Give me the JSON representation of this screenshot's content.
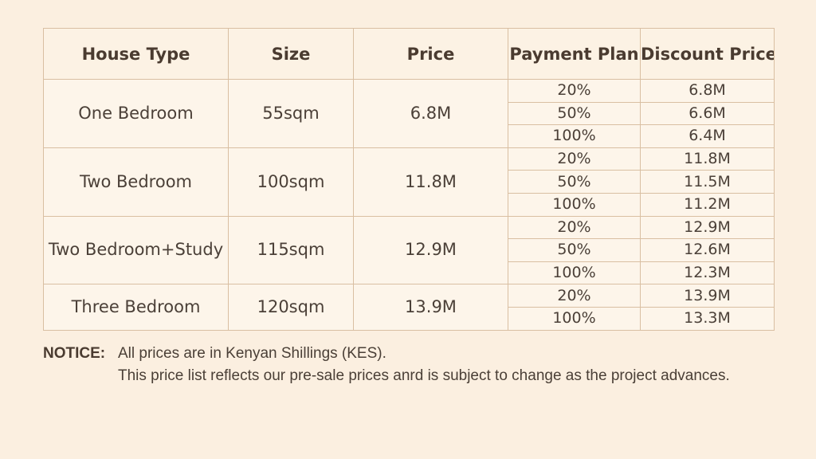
{
  "table": {
    "headers": [
      "House Type",
      "Size",
      "Price",
      "Payment Plan",
      "Discount Price"
    ],
    "groups": [
      {
        "house_type": "One Bedroom",
        "size": "55sqm",
        "price": "6.8M",
        "plans": [
          {
            "plan": "20%",
            "discount": "6.8M"
          },
          {
            "plan": "50%",
            "discount": "6.6M"
          },
          {
            "plan": "100%",
            "discount": "6.4M"
          }
        ]
      },
      {
        "house_type": "Two Bedroom",
        "size": "100sqm",
        "price": "11.8M",
        "plans": [
          {
            "plan": "20%",
            "discount": "11.8M"
          },
          {
            "plan": "50%",
            "discount": "11.5M"
          },
          {
            "plan": "100%",
            "discount": "11.2M"
          }
        ]
      },
      {
        "house_type": "Two Bedroom+Study",
        "size": "115sqm",
        "price": "12.9M",
        "plans": [
          {
            "plan": "20%",
            "discount": "12.9M"
          },
          {
            "plan": "50%",
            "discount": "12.6M"
          },
          {
            "plan": "100%",
            "discount": "12.3M"
          }
        ]
      },
      {
        "house_type": "Three Bedroom",
        "size": "120sqm",
        "price": "13.9M",
        "plans": [
          {
            "plan": "20%",
            "discount": "13.9M"
          },
          {
            "plan": "100%",
            "discount": "13.3M"
          }
        ]
      }
    ]
  },
  "notice": {
    "label": "NOTICE:",
    "line1": "All prices are in Kenyan Shillings (KES).",
    "line2": "This price list reflects our pre-sale prices anrd is subject to change as the project advances."
  }
}
